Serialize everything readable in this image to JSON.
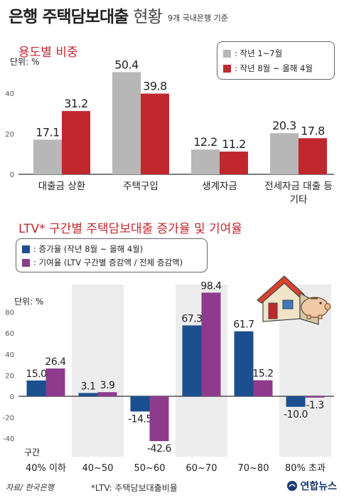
{
  "title": {
    "main": "은행 주택담보대출",
    "sub": "현황",
    "note": "9개 국내은행 기준"
  },
  "chart_data": [
    {
      "type": "bar",
      "title": "용도별 비중",
      "ylabel": "단위: %",
      "ylim": [
        0,
        60
      ],
      "yticks": [
        0,
        20,
        40
      ],
      "categories": [
        "대출금 상환",
        "주택구입",
        "생계자금",
        "전세자금 대출 등|기타"
      ],
      "series": [
        {
          "name": "작년 1~7월",
          "color": "#b7b7b7",
          "values": [
            17.1,
            50.4,
            12.2,
            20.3
          ],
          "labels": [
            "17.1",
            "50.4",
            "12.2",
            "20.3"
          ]
        },
        {
          "name": "작년 8월 ~ 올해 4월",
          "color": "#c0282e",
          "values": [
            31.2,
            39.8,
            11.2,
            17.8
          ],
          "labels": [
            "31.2",
            "39.8",
            "11.2",
            "17.8"
          ]
        }
      ],
      "legend_position": "top-right",
      "grid": false
    },
    {
      "type": "bar",
      "title": "LTV* 구간별 주택담보대출 증가율 및 기여율",
      "ylabel": "단위: %",
      "xlabel": "구간",
      "ylim": [
        -45,
        100
      ],
      "yticks": [
        -40,
        -20,
        0,
        20,
        40,
        60,
        80
      ],
      "categories": [
        "40% 이하",
        "40~50",
        "50~60",
        "60~70",
        "70~80",
        "80% 초과"
      ],
      "series": [
        {
          "name": "증가율 (작년 8월 ~ 올해 4월)",
          "color": "#1b4f8f",
          "values": [
            15.0,
            3.1,
            -14.5,
            67.3,
            61.7,
            -10.0
          ],
          "labels": [
            "15.0",
            "3.1",
            "-14.5",
            "67.3",
            "61.7",
            "-10.0"
          ]
        },
        {
          "name": "기여율 (LTV 구간별 증감액 / 전체 증감액)",
          "color": "#8e3b8e",
          "values": [
            26.4,
            3.9,
            -42.6,
            98.4,
            15.2,
            -1.3
          ],
          "labels": [
            "26.4",
            "3.9",
            "-42.6",
            "98.4",
            "15.2",
            "-1.3"
          ]
        }
      ],
      "legend_position": "top-left",
      "grid": false,
      "alternating_bands": true
    }
  ],
  "legend1": {
    "items": [
      ": 작년 1~7월",
      ": 작년 8월 ~ 올해 4월"
    ]
  },
  "legend2": {
    "items": [
      ": 증가율 (작년 8월 ~ 올해 4월)",
      ": 기여율 (LTV 구간별 증감액 / 전체 증감액)"
    ]
  },
  "footer": {
    "source": "자료/ 한국은행",
    "note": "*LTV: 주택담보대출비율",
    "logo": "연합뉴스"
  },
  "icons": [
    "house-illustration",
    "piggy-bank-icon",
    "yonhap-logo-icon"
  ]
}
